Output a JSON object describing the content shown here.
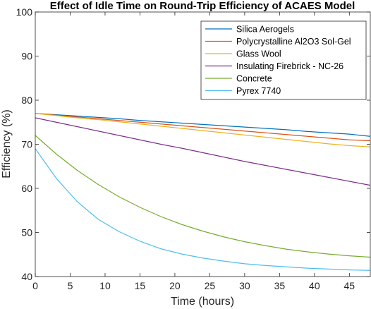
{
  "chart_data": {
    "type": "line",
    "title": "Effect of Idle Time on Round-Trip Efficiency of ACAES Model",
    "xlabel": "Time (hours)",
    "ylabel": "Efficiency (%)",
    "xlim": [
      0,
      48
    ],
    "ylim": [
      40,
      100
    ],
    "xticks": [
      0,
      5,
      10,
      15,
      20,
      25,
      30,
      35,
      40,
      45
    ],
    "yticks": [
      40,
      50,
      60,
      70,
      80,
      90,
      100
    ],
    "grid": false,
    "legend_position": "top-right",
    "x": [
      0,
      3,
      6,
      9,
      12,
      15,
      18,
      21,
      24,
      27,
      30,
      33,
      36,
      39,
      42,
      45,
      48
    ],
    "series": [
      {
        "name": "Silica Aerogels",
        "color": "#0072BD",
        "values": [
          77.0,
          76.7,
          76.4,
          76.1,
          75.8,
          75.4,
          75.1,
          74.8,
          74.5,
          74.2,
          73.9,
          73.6,
          73.3,
          72.9,
          72.6,
          72.3,
          71.8
        ]
      },
      {
        "name": "Polycrystalline Al2O3 Sol-Gel",
        "color": "#D95319",
        "values": [
          77.0,
          76.6,
          76.2,
          75.8,
          75.4,
          75.0,
          74.6,
          74.2,
          73.8,
          73.4,
          73.0,
          72.6,
          72.2,
          71.8,
          71.4,
          71.0,
          70.8
        ]
      },
      {
        "name": "Glass Wool",
        "color": "#EDB120",
        "values": [
          77.0,
          76.5,
          76.0,
          75.6,
          75.1,
          74.6,
          74.1,
          73.6,
          73.1,
          72.6,
          72.1,
          71.6,
          71.1,
          70.6,
          70.1,
          69.7,
          69.4
        ]
      },
      {
        "name": "Insulating Firebrick - NC-26",
        "color": "#7E2F8E",
        "values": [
          76.0,
          75.0,
          74.0,
          73.0,
          72.0,
          71.0,
          70.0,
          69.1,
          68.1,
          67.1,
          66.1,
          65.2,
          64.3,
          63.4,
          62.5,
          61.6,
          60.7
        ]
      },
      {
        "name": "Concrete",
        "color": "#77AC30",
        "values": [
          72.0,
          67.8,
          64.1,
          60.9,
          58.1,
          55.7,
          53.6,
          51.8,
          50.3,
          49.0,
          47.9,
          47.0,
          46.2,
          45.6,
          45.1,
          44.7,
          44.4
        ]
      },
      {
        "name": "Pyrex 7740",
        "color": "#4DBEEE",
        "values": [
          69.0,
          62.3,
          57.0,
          53.0,
          50.2,
          48.0,
          46.3,
          45.1,
          44.2,
          43.5,
          42.9,
          42.5,
          42.2,
          41.9,
          41.7,
          41.5,
          41.4
        ]
      }
    ]
  }
}
